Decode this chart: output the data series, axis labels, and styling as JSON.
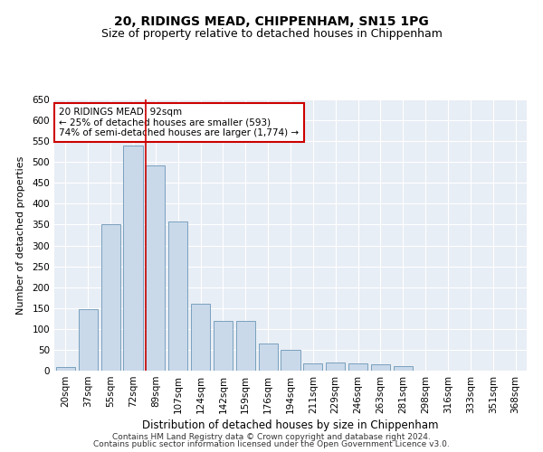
{
  "title1": "20, RIDINGS MEAD, CHIPPENHAM, SN15 1PG",
  "title2": "Size of property relative to detached houses in Chippenham",
  "xlabel": "Distribution of detached houses by size in Chippenham",
  "ylabel": "Number of detached properties",
  "categories": [
    "20sqm",
    "37sqm",
    "55sqm",
    "72sqm",
    "89sqm",
    "107sqm",
    "124sqm",
    "142sqm",
    "159sqm",
    "176sqm",
    "194sqm",
    "211sqm",
    "229sqm",
    "246sqm",
    "263sqm",
    "281sqm",
    "298sqm",
    "316sqm",
    "333sqm",
    "351sqm",
    "368sqm"
  ],
  "bar_values": [
    8,
    148,
    352,
    540,
    492,
    358,
    160,
    120,
    120,
    65,
    50,
    18,
    20,
    18,
    15,
    10,
    0,
    0,
    0,
    0,
    0
  ],
  "bar_color": "#c9d9ea",
  "bar_edge_color": "#7aa0be",
  "red_line_x": 4,
  "annotation_text": "20 RIDINGS MEAD: 92sqm\n← 25% of detached houses are smaller (593)\n74% of semi-detached houses are larger (1,774) →",
  "annotation_box_color": "#ffffff",
  "annotation_box_edge": "#cc0000",
  "ylim": [
    0,
    650
  ],
  "yticks": [
    0,
    50,
    100,
    150,
    200,
    250,
    300,
    350,
    400,
    450,
    500,
    550,
    600,
    650
  ],
  "background_color": "#e8eef5",
  "footer1": "Contains HM Land Registry data © Crown copyright and database right 2024.",
  "footer2": "Contains public sector information licensed under the Open Government Licence v3.0.",
  "title1_fontsize": 10,
  "title2_fontsize": 9,
  "xlabel_fontsize": 8.5,
  "ylabel_fontsize": 8,
  "tick_fontsize": 7.5,
  "annotation_fontsize": 7.5,
  "footer_fontsize": 6.5
}
